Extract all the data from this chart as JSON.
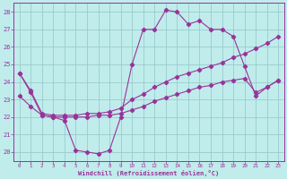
{
  "xlabel": "Windchill (Refroidissement éolien,°C)",
  "bg_color": "#c0ecec",
  "grid_color": "#99cccc",
  "line_color": "#993399",
  "ylim": [
    19.5,
    28.5
  ],
  "yticks": [
    20,
    21,
    22,
    23,
    24,
    25,
    26,
    27,
    28
  ],
  "xticks": [
    0,
    1,
    2,
    3,
    4,
    5,
    6,
    7,
    8,
    9,
    10,
    11,
    12,
    13,
    14,
    15,
    16,
    17,
    18,
    19,
    20,
    21,
    22,
    23
  ],
  "line1_x": [
    0,
    1,
    2,
    3,
    4,
    5,
    6,
    7,
    8,
    9,
    10,
    11,
    12,
    13,
    14,
    15,
    16,
    17,
    18,
    19,
    20,
    21,
    22,
    23
  ],
  "line1_y": [
    24.5,
    23.4,
    22.1,
    22.0,
    21.8,
    20.1,
    20.0,
    19.9,
    20.1,
    22.0,
    25.0,
    27.0,
    27.0,
    28.1,
    28.0,
    27.3,
    27.5,
    27.0,
    27.0,
    26.6,
    24.9,
    23.2,
    23.7,
    24.1
  ],
  "line2_x": [
    0,
    1,
    2,
    3,
    4,
    5,
    6,
    7,
    8,
    9,
    10,
    11,
    12,
    13,
    14,
    15,
    16,
    17,
    18,
    19,
    20,
    21,
    22,
    23
  ],
  "line2_y": [
    24.5,
    23.5,
    22.2,
    22.1,
    22.1,
    22.1,
    22.2,
    22.2,
    22.3,
    22.5,
    23.0,
    23.3,
    23.7,
    24.0,
    24.3,
    24.5,
    24.7,
    24.9,
    25.1,
    25.4,
    25.6,
    25.9,
    26.2,
    26.6
  ],
  "line3_x": [
    0,
    1,
    2,
    3,
    4,
    5,
    6,
    7,
    8,
    9,
    10,
    11,
    12,
    13,
    14,
    15,
    16,
    17,
    18,
    19,
    20,
    21,
    22,
    23
  ],
  "line3_y": [
    23.2,
    22.6,
    22.1,
    22.0,
    22.0,
    22.0,
    22.0,
    22.1,
    22.1,
    22.2,
    22.4,
    22.6,
    22.9,
    23.1,
    23.3,
    23.5,
    23.7,
    23.8,
    24.0,
    24.1,
    24.2,
    23.4,
    23.7,
    24.1
  ]
}
